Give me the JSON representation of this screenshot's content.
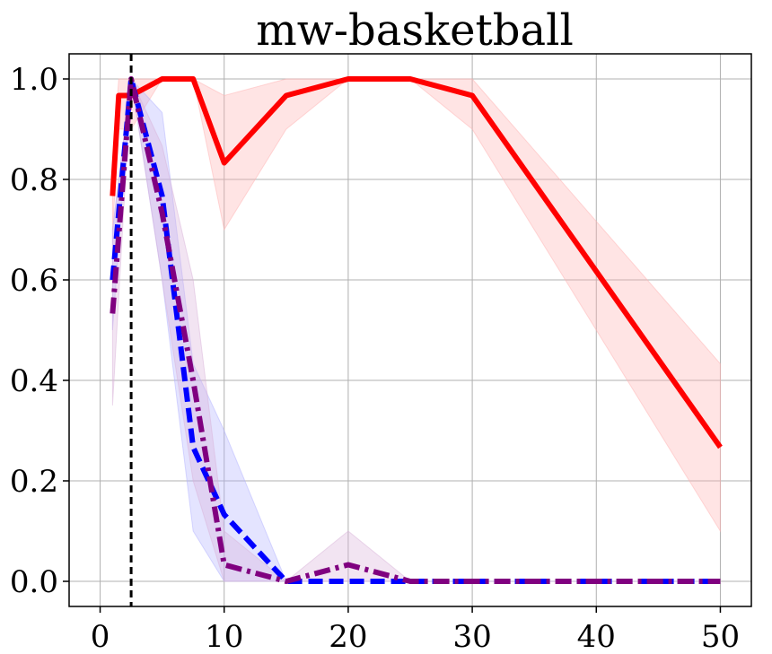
{
  "chart_data": {
    "type": "line",
    "title": "mw-basketball",
    "xlabel": "",
    "ylabel": "",
    "xlim": [
      -2.5,
      52.5
    ],
    "ylim": [
      -0.05,
      1.05
    ],
    "xticks": [
      0,
      10,
      20,
      30,
      40,
      50
    ],
    "yticks": [
      0.0,
      0.2,
      0.4,
      0.6,
      0.8,
      1.0
    ],
    "xtick_labels": [
      "0",
      "10",
      "20",
      "30",
      "40",
      "50"
    ],
    "ytick_labels": [
      "0.0",
      "0.2",
      "0.4",
      "0.6",
      "0.8",
      "1.0"
    ],
    "grid": true,
    "vline": {
      "x": 2.5,
      "color": "#000000",
      "style": "dashed"
    },
    "series": [
      {
        "color": "#ff0000",
        "style": "solid",
        "band_color": "#ffb3b3",
        "x": [
          1,
          1.5,
          2.5,
          5,
          7.5,
          10,
          15,
          20,
          25,
          30,
          50
        ],
        "y": [
          0.767,
          0.967,
          0.967,
          1.0,
          1.0,
          0.833,
          0.967,
          1.0,
          1.0,
          0.967,
          0.267
        ],
        "lower": [
          0.7,
          0.9,
          0.9,
          1.0,
          1.0,
          0.7,
          0.9,
          1.0,
          1.0,
          0.9,
          0.1
        ],
        "upper": [
          0.833,
          1.0,
          1.0,
          1.0,
          1.0,
          0.967,
          1.0,
          1.0,
          1.0,
          1.0,
          0.433
        ]
      },
      {
        "color": "#0000ff",
        "style": "dashed",
        "band_color": "#b3b3ff",
        "x": [
          1,
          2.5,
          5,
          7.5,
          10,
          15,
          20,
          25,
          30,
          50
        ],
        "y": [
          0.6,
          1.0,
          0.767,
          0.267,
          0.133,
          0.0,
          0.0,
          0.0,
          0.0,
          0.0
        ],
        "lower": [
          0.5,
          1.0,
          0.6,
          0.1,
          0.0,
          0.0,
          0.0,
          0.0,
          0.0,
          0.0
        ],
        "upper": [
          0.7,
          1.0,
          0.933,
          0.433,
          0.3,
          0.0,
          0.0,
          0.0,
          0.0,
          0.0
        ]
      },
      {
        "color": "#800080",
        "style": "dashdot",
        "band_color": "#d9b3d9",
        "x": [
          1,
          2.5,
          5,
          7.5,
          10,
          15,
          20,
          25,
          30,
          50
        ],
        "y": [
          0.533,
          1.0,
          0.733,
          0.4,
          0.033,
          0.0,
          0.033,
          0.0,
          0.0,
          0.0
        ],
        "lower": [
          0.35,
          1.0,
          0.6,
          0.2,
          0.0,
          0.0,
          0.0,
          0.0,
          0.0,
          0.0
        ],
        "upper": [
          0.7,
          1.0,
          0.867,
          0.6,
          0.1,
          0.0,
          0.1,
          0.0,
          0.0,
          0.0
        ]
      }
    ]
  }
}
